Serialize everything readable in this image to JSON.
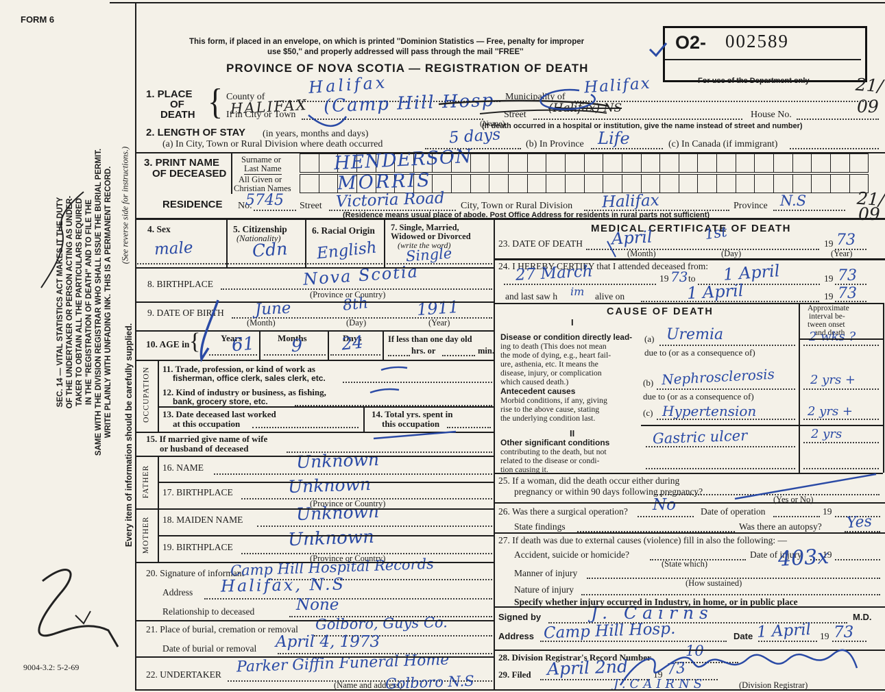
{
  "margin": {
    "form_no": "FORM 6",
    "sec14": [
      "SEC. 14 — VITAL STATISTICS ACT MAKES IT THE DUTY",
      "OF THE UNDERTAKER OR PERSON ACTING AS UNDER-",
      "TAKER TO OBTAIN ALL THE PARTICULARS REQUIRED",
      "IN THE \"REGISTRATION OF DEATH\" AND TO FILE THE",
      "SAME WITH THE DIVISION REGISTRAR WHO SHALL ISSUE THE BURIAL PERMIT.",
      "WRITE PLAINLY WITH UNFADING INK. THIS IS A PERMANENT RECORD."
    ],
    "reverse_note": "(See reverse side for instructions.)",
    "supply_note": "Every item of information should be carefully supplied.",
    "print_code": "9004-3.2: 5-2-69"
  },
  "header": {
    "notice1": "This form, if placed in an envelope, on which is printed ''Dominion Statistics — Free, penalty for improper",
    "notice2": "use $50,'' and properly addressed will pass through the mail ''FREE''",
    "title": "PROVINCE OF NOVA SCOTIA — REGISTRATION OF DEATH",
    "serial_prefix": "O2-",
    "serial_number": "002589",
    "dept_only": "For use of the Department only",
    "code_top": "21/",
    "code_bottom": "09"
  },
  "glyphs": {
    "brace": "{"
  },
  "s1": {
    "num1": "1. PLACE",
    "num2": "OF",
    "num3": "DEATH",
    "county_label": "County of",
    "county_value": "Halifax",
    "municipality_label": "Municipality of",
    "municipality_value": "Halifax",
    "city_label": "If in City or Town",
    "name_sub": "(Name)",
    "city_value_black": "HALIFAX",
    "city_value_blue": "(Camp Hill Hosp",
    "street_label": "Street",
    "street_value": "(Halifax)  NS",
    "house_label": "House No.",
    "hospital_note": "(If death occurred in a hospital or institution, give the name instead of street and number)"
  },
  "s2": {
    "head_bold": "2. LENGTH OF STAY",
    "head_rest": "(in years, months and days)",
    "a_label": "(a) In City, Town or Rural Division where death occurred",
    "a_value": "5 days",
    "b_label": "(b) In Province",
    "b_value": "Life",
    "c_label": "(c) In Canada (if immigrant)"
  },
  "s3": {
    "head1": "3. PRINT NAME",
    "head2": "OF DECEASED",
    "surname1": "Surname or",
    "surname2": "Last Name",
    "given1": "All Given or",
    "given2": "Christian Names",
    "surname_value": "HENDERSON",
    "given_value": "MORRIS"
  },
  "residence": {
    "label": "RESIDENCE",
    "no_label": "No.",
    "no_value": "5745",
    "street_label": "Street",
    "street_value": "Victoria  Road",
    "city_label": "City, Town or Rural Division",
    "city_value": "Halifax",
    "province_label": "Province",
    "province_value": "N.S",
    "note": "(Residence means usual place of abode. Post Office Address for residents in rural parts not sufficient)",
    "code_top": "21/",
    "code_bottom": "09"
  },
  "s4": {
    "label": "4. Sex",
    "value": "male"
  },
  "s5": {
    "label": "5. Citizenship",
    "label2": "(Nationality)",
    "value": "Cdn"
  },
  "s6": {
    "label": "6. Racial Origin",
    "value": "English"
  },
  "s7": {
    "l1": "7. Single, Married,",
    "l2": "Widowed or Divorced",
    "l3": "(write the word)",
    "value": "Single"
  },
  "s8": {
    "label": "8. BIRTHPLACE",
    "sub": "(Province or Country)",
    "value": "Nova Scotia"
  },
  "s9": {
    "label": "9. DATE OF BIRTH",
    "m_sub": "(Month)",
    "d_sub": "(Day)",
    "y_sub": "(Year)",
    "month": "June",
    "day": "8th",
    "year": "1911"
  },
  "s10": {
    "label": "10. AGE in",
    "years_l": "Years",
    "months_l": "Months",
    "days_l": "Days",
    "less1": "If less than one day old",
    "hrs": "hrs. or",
    "min": "min.",
    "years": "61",
    "months": "9",
    "days": "24"
  },
  "occ": {
    "side": "OCCUPATION",
    "l11a": "11. Trade, profession, or kind of work as",
    "l11b": "fisherman, office clerk, sales clerk, etc.",
    "l12a": "12. Kind of industry or business, as fishing,",
    "l12b": "bank, grocery store, etc.",
    "l13a": "13. Date deceased last worked",
    "l13b": "at this occupation",
    "l14a": "14. Total yrs. spent in",
    "l14b": "this occupation"
  },
  "s15": {
    "l1": "15. If married give name of wife",
    "l2": "or husband of deceased"
  },
  "father": {
    "side": "FATHER",
    "l16": "16. NAME",
    "v16": "Unknown",
    "l17": "17. BIRTHPLACE",
    "sub": "(Province or Country)",
    "v17": "Unknown"
  },
  "mother": {
    "side": "MOTHER",
    "l18": "18. MAIDEN NAME",
    "v18": "Unknown",
    "l19": "19. BIRTHPLACE",
    "sub": "(Province or Country)",
    "v19": "Unknown"
  },
  "s20": {
    "label": "20. Signature of informant",
    "value": "Camp Hill Hospital Records",
    "addr_l": "Address",
    "addr_v": "Halifax, N.S",
    "rel_l": "Relationship to deceased",
    "rel_v": "None"
  },
  "s21": {
    "label": "21. Place of burial, cremation or removal",
    "value": "Golboro, Guys Co.",
    "date_l": "Date of burial or removal",
    "date_v": "April 4, 1973"
  },
  "s22": {
    "label": "22. UNDERTAKER",
    "value": "Parker Giffin Funeral Home",
    "sub": "(Name and address)",
    "value2": "Golboro  N.S"
  },
  "med": {
    "title": "MEDICAL CERTIFICATE OF DEATH",
    "s23": {
      "label": "23. DATE OF DEATH",
      "month": "April",
      "day": "1st",
      "yr19": "19",
      "yr": "73",
      "m_sub": "(Month)",
      "d_sub": "(Day)",
      "y_sub": "(Year)"
    },
    "s24": {
      "label": "24. I HEREBY CERTIFY that I attended deceased from:",
      "from": "27 March",
      "yr19a": "19",
      "yr1": "73",
      "to_l": "to",
      "to": "1 April",
      "yr19b": "19",
      "yr2": "73",
      "lastsaw_pre": "and last saw h",
      "lastsaw_hw": "im",
      "lastsaw_post": "alive on",
      "lastsaw_v": "1 April",
      "yr19c": "19",
      "yr3": "73"
    },
    "cause": {
      "header": "CAUSE OF DEATH",
      "interval": [
        "Approximate",
        "interval be-",
        "tween onset",
        "and death"
      ],
      "roman1": "I",
      "b1": [
        "Disease or condition directly lead-",
        "ing to death (This does not mean",
        "the mode of dying, e.g., heart fail-",
        "ure, asthenia, etc. It means the",
        "disease, injury, or complication",
        "which caused death.)"
      ],
      "a_l": "(a)",
      "a_v": "Uremia",
      "a_int": "2 wks ?",
      "dueto": "due to (or as a consequence of)",
      "ante_bold": "Antecedent causes",
      "ante": [
        "Morbid conditions, if any, giving",
        "rise to the above cause, stating",
        "the underlying condition last."
      ],
      "b_l": "(b)",
      "b_v": "Nephrosclerosis",
      "b_int": "2 yrs +",
      "c_l": "(c)",
      "c_v": "Hypertension",
      "c_int": "2 yrs +",
      "roman2": "II",
      "other_bold": "Other significant conditions",
      "other": [
        "contributing to the death, but not",
        "related to the disease or condi-",
        "tion causing it."
      ],
      "other_v": "Gastric ulcer",
      "other_int": "2 yrs"
    },
    "s25": {
      "l1": "25. If a woman, did the death occur either during",
      "l2": "pregnancy or within 90 days following pregnancy?",
      "sub": "(Yes or No)"
    },
    "s26": {
      "a": "26. Was there a surgical operation?",
      "a_v": "No",
      "b": "Date of operation",
      "yr19": "19",
      "c": "State findings",
      "d": "Was there an autopsy?",
      "d_v": "Yes"
    },
    "s27": {
      "a": "27. If death was due to external causes (violence) fill in also the following: —",
      "b": "Accident, suicide or homicide?",
      "b_sub": "(State which)",
      "c": "Date of injury",
      "yr19": "19",
      "d": "Manner of injury",
      "d_sub": "(How sustained)",
      "d_v": "403x",
      "e": "Nature of injury",
      "f": "Specify whether injury occurred in Industry, in home, or in public place"
    },
    "signed": {
      "l": "Signed by",
      "v": "J. Cairns",
      "md": "M.D.",
      "addr_l": "Address",
      "addr_v": "Camp Hill Hosp.",
      "date_l": "Date",
      "date_v": "1 April",
      "yr19": "19",
      "yr": "73"
    },
    "s28": {
      "l": "28. Division Registrar's Record Number",
      "v": "10"
    },
    "s29": {
      "l": "29. Filed",
      "v": "April 2nd",
      "yr19": "19",
      "yr": "73",
      "stamp": "J.CAIRNS",
      "sub": "(Division Registrar)"
    }
  }
}
